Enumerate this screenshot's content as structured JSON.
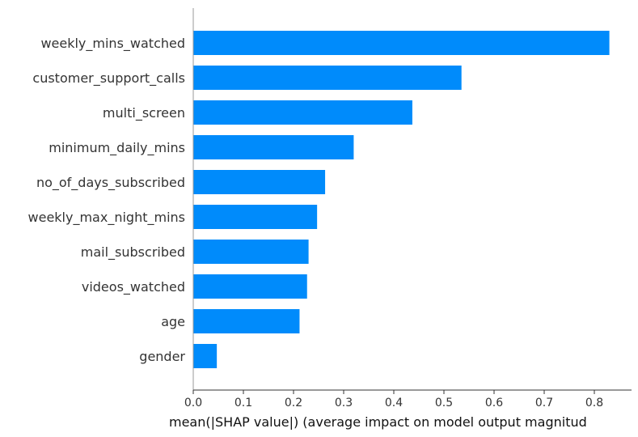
{
  "chart_data": {
    "type": "bar",
    "orientation": "horizontal",
    "xlabel": "mean(|SHAP value|) (average impact on model output magnitud",
    "ylabel": "",
    "title": "",
    "categories": [
      "weekly_mins_watched",
      "customer_support_calls",
      "multi_screen",
      "minimum_daily_mins",
      "no_of_days_subscribed",
      "weekly_max_night_mins",
      "mail_subscribed",
      "videos_watched",
      "age",
      "gender"
    ],
    "values": [
      0.83,
      0.535,
      0.437,
      0.32,
      0.263,
      0.247,
      0.23,
      0.227,
      0.212,
      0.047
    ],
    "xlim": [
      0,
      0.87
    ],
    "xticks": [
      "0.0",
      "0.1",
      "0.2",
      "0.3",
      "0.4",
      "0.5",
      "0.6",
      "0.7",
      "0.8"
    ],
    "bar_color": "#008bfb",
    "grid": false,
    "legend": "none"
  }
}
